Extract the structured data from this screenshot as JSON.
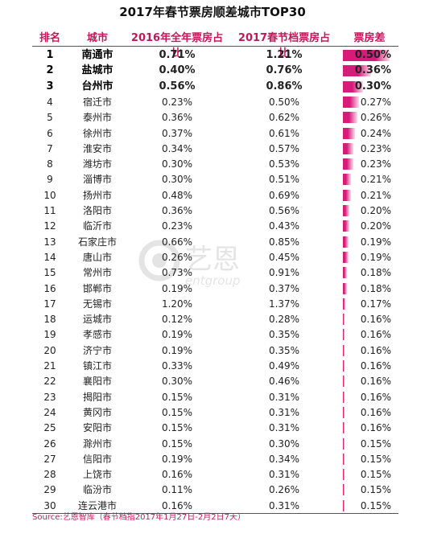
{
  "title": "2017年春节票房顺差城市TOP30",
  "headers": {
    "rank": "排名",
    "city": "城市",
    "y2016": "2016年全年票房占比",
    "y2017": "2017春节档票房占比",
    "diff": "票房差"
  },
  "colors": {
    "bar": "#d81b7a",
    "header": "#c2185b"
  },
  "chart_data": {
    "type": "table",
    "title": "2017年春节票房顺差城市TOP30",
    "columns": [
      "排名",
      "城市",
      "2016年全年票房占比",
      "2017春节档票房占比",
      "票房差"
    ],
    "rows": [
      {
        "rank": "1",
        "city": "南通市",
        "y2016": "0.71%",
        "y2017": "1.21%",
        "diff": "0.50%",
        "diff_value": 0.5
      },
      {
        "rank": "2",
        "city": "盐城市",
        "y2016": "0.40%",
        "y2017": "0.76%",
        "diff": "0.36%",
        "diff_value": 0.36
      },
      {
        "rank": "3",
        "city": "台州市",
        "y2016": "0.56%",
        "y2017": "0.86%",
        "diff": "0.30%",
        "diff_value": 0.3
      },
      {
        "rank": "4",
        "city": "宿迁市",
        "y2016": "0.23%",
        "y2017": "0.50%",
        "diff": "0.27%",
        "diff_value": 0.27
      },
      {
        "rank": "5",
        "city": "泰州市",
        "y2016": "0.36%",
        "y2017": "0.62%",
        "diff": "0.26%",
        "diff_value": 0.26
      },
      {
        "rank": "6",
        "city": "徐州市",
        "y2016": "0.37%",
        "y2017": "0.61%",
        "diff": "0.24%",
        "diff_value": 0.24
      },
      {
        "rank": "7",
        "city": "淮安市",
        "y2016": "0.34%",
        "y2017": "0.57%",
        "diff": "0.23%",
        "diff_value": 0.23
      },
      {
        "rank": "8",
        "city": "潍坊市",
        "y2016": "0.30%",
        "y2017": "0.53%",
        "diff": "0.23%",
        "diff_value": 0.23
      },
      {
        "rank": "9",
        "city": "淄博市",
        "y2016": "0.30%",
        "y2017": "0.51%",
        "diff": "0.21%",
        "diff_value": 0.21
      },
      {
        "rank": "10",
        "city": "扬州市",
        "y2016": "0.48%",
        "y2017": "0.69%",
        "diff": "0.21%",
        "diff_value": 0.21
      },
      {
        "rank": "11",
        "city": "洛阳市",
        "y2016": "0.36%",
        "y2017": "0.56%",
        "diff": "0.20%",
        "diff_value": 0.2
      },
      {
        "rank": "12",
        "city": "临沂市",
        "y2016": "0.23%",
        "y2017": "0.43%",
        "diff": "0.20%",
        "diff_value": 0.2
      },
      {
        "rank": "13",
        "city": "石家庄市",
        "y2016": "0.66%",
        "y2017": "0.85%",
        "diff": "0.19%",
        "diff_value": 0.19
      },
      {
        "rank": "14",
        "city": "唐山市",
        "y2016": "0.26%",
        "y2017": "0.45%",
        "diff": "0.19%",
        "diff_value": 0.19
      },
      {
        "rank": "15",
        "city": "常州市",
        "y2016": "0.73%",
        "y2017": "0.91%",
        "diff": "0.18%",
        "diff_value": 0.18
      },
      {
        "rank": "16",
        "city": "邯郸市",
        "y2016": "0.19%",
        "y2017": "0.37%",
        "diff": "0.18%",
        "diff_value": 0.18
      },
      {
        "rank": "17",
        "city": "无锡市",
        "y2016": "1.20%",
        "y2017": "1.37%",
        "diff": "0.17%",
        "diff_value": 0.17
      },
      {
        "rank": "18",
        "city": "运城市",
        "y2016": "0.12%",
        "y2017": "0.28%",
        "diff": "0.16%",
        "diff_value": 0.16
      },
      {
        "rank": "19",
        "city": "孝感市",
        "y2016": "0.19%",
        "y2017": "0.35%",
        "diff": "0.16%",
        "diff_value": 0.16
      },
      {
        "rank": "20",
        "city": "济宁市",
        "y2016": "0.19%",
        "y2017": "0.35%",
        "diff": "0.16%",
        "diff_value": 0.16
      },
      {
        "rank": "21",
        "city": "镇江市",
        "y2016": "0.33%",
        "y2017": "0.49%",
        "diff": "0.16%",
        "diff_value": 0.16
      },
      {
        "rank": "22",
        "city": "襄阳市",
        "y2016": "0.30%",
        "y2017": "0.46%",
        "diff": "0.16%",
        "diff_value": 0.16
      },
      {
        "rank": "23",
        "city": "揭阳市",
        "y2016": "0.15%",
        "y2017": "0.31%",
        "diff": "0.16%",
        "diff_value": 0.16
      },
      {
        "rank": "24",
        "city": "黄冈市",
        "y2016": "0.15%",
        "y2017": "0.31%",
        "diff": "0.16%",
        "diff_value": 0.16
      },
      {
        "rank": "25",
        "city": "安阳市",
        "y2016": "0.15%",
        "y2017": "0.31%",
        "diff": "0.16%",
        "diff_value": 0.16
      },
      {
        "rank": "26",
        "city": "滁州市",
        "y2016": "0.15%",
        "y2017": "0.30%",
        "diff": "0.15%",
        "diff_value": 0.15
      },
      {
        "rank": "27",
        "city": "信阳市",
        "y2016": "0.19%",
        "y2017": "0.34%",
        "diff": "0.15%",
        "diff_value": 0.15
      },
      {
        "rank": "28",
        "city": "上饶市",
        "y2016": "0.16%",
        "y2017": "0.31%",
        "diff": "0.15%",
        "diff_value": 0.15
      },
      {
        "rank": "29",
        "city": "临汾市",
        "y2016": "0.11%",
        "y2017": "0.26%",
        "diff": "0.15%",
        "diff_value": 0.15
      },
      {
        "rank": "30",
        "city": "连云港市",
        "y2016": "0.16%",
        "y2017": "0.31%",
        "diff": "0.15%",
        "diff_value": 0.15
      }
    ]
  },
  "watermark": {
    "brand": "艺恩",
    "sub": "entgroup"
  },
  "source": "Source:艺恩智库（春节档指2017年1月27日-2月2日7天）"
}
